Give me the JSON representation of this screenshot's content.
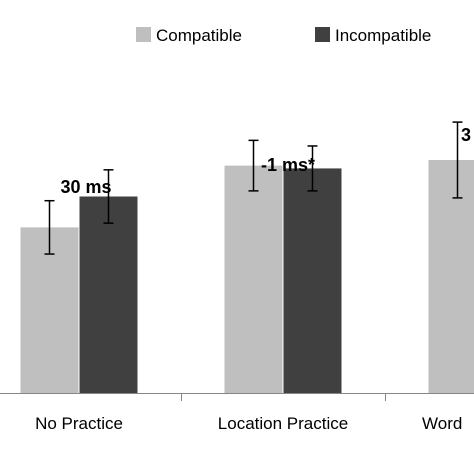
{
  "chart_data": {
    "type": "bar",
    "categories": [
      "No Practice",
      "Location Practice",
      "Word"
    ],
    "series": [
      {
        "name": "Compatible",
        "color": "#bfbfbf",
        "values": [
          0.59,
          0.81,
          0.83
        ],
        "errors": [
          0.095,
          0.09,
          0.135
        ]
      },
      {
        "name": "Incompatible",
        "color": "#404040",
        "values": [
          0.7,
          0.8,
          null
        ],
        "errors": [
          0.095,
          0.08,
          null
        ]
      }
    ],
    "annotations": [
      "30 ms",
      "-1 ms*",
      "3"
    ],
    "legend_position": "top",
    "grid": false,
    "ylim": [
      0,
      1.4
    ]
  }
}
